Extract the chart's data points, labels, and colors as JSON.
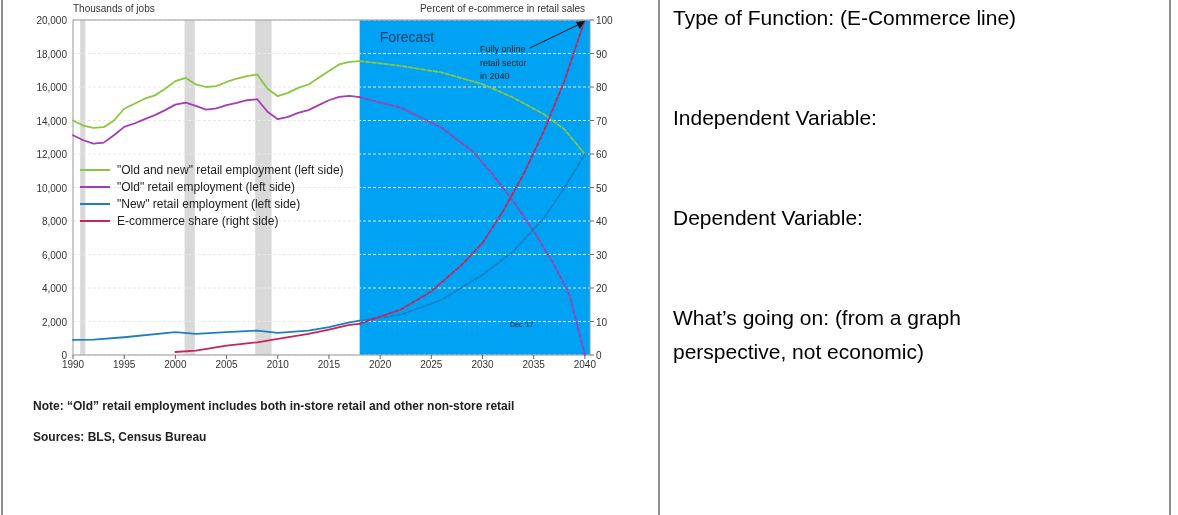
{
  "chart_data": [
    {
      "type": "line",
      "ylabel": "Thousands of jobs",
      "y2label": "Percent of e-commerce in retail sales",
      "xlim": [
        1990,
        2040.5
      ],
      "xticks": [
        1990,
        1995,
        2000,
        2005,
        2010,
        2015,
        2020,
        2025,
        2030,
        2035,
        2040
      ],
      "ylim": [
        0,
        20000
      ],
      "yticks": [
        {
          "value": 0,
          "label": "0"
        },
        {
          "value": 2000,
          "label": "2,000"
        },
        {
          "value": 4000,
          "label": "4,000"
        },
        {
          "value": 6000,
          "label": "6,000"
        },
        {
          "value": 8000,
          "label": "8,000"
        },
        {
          "value": 10000,
          "label": "10,000"
        },
        {
          "value": 12000,
          "label": "12,000"
        },
        {
          "value": 14000,
          "label": "14,000"
        },
        {
          "value": 16000,
          "label": "16,000"
        },
        {
          "value": 18000,
          "label": "18,000"
        },
        {
          "value": 20000,
          "label": "20,000"
        }
      ],
      "y2lim": [
        0,
        100
      ],
      "y2ticks": [
        0,
        10,
        20,
        30,
        40,
        50,
        60,
        70,
        80,
        90,
        100
      ],
      "grid": "y",
      "legend": "left",
      "line_style": "solid",
      "bands": [
        {
          "axis": "x",
          "from": 1990.7,
          "to": 1991.2,
          "color": "#d9d9d9"
        },
        {
          "axis": "x",
          "from": 2000.9,
          "to": 2001.9,
          "color": "#d9d9d9"
        },
        {
          "axis": "x",
          "from": 2007.8,
          "to": 2009.4,
          "color": "#d9d9d9"
        },
        {
          "axis": "x",
          "from": 2018,
          "to": 2040.5,
          "label": "Forecast",
          "color": "#00a3f3"
        }
      ],
      "series": [
        {
          "name": "\"Old and new\" retail employment (left side)",
          "color": "#8cc63e",
          "x": [
            1990,
            1991,
            1992,
            1993,
            1994,
            1995,
            1996,
            1997,
            1998,
            1999,
            2000,
            2001,
            2002,
            2003,
            2004,
            2005,
            2006,
            2007,
            2008,
            2009,
            2010,
            2011,
            2012,
            2013,
            2014,
            2015,
            2016,
            2017,
            2018
          ],
          "values": [
            14000,
            13700,
            13560,
            13600,
            14000,
            14700,
            15000,
            15300,
            15500,
            15900,
            16350,
            16550,
            16150,
            16000,
            16050,
            16300,
            16500,
            16650,
            16750,
            15900,
            15450,
            15650,
            15950,
            16150,
            16550,
            16950,
            17350,
            17500,
            17550
          ]
        },
        {
          "name": "\"Old\" retail employment (left side)",
          "color": "#a33db3",
          "x": [
            1990,
            1991,
            1992,
            1993,
            1994,
            1995,
            1996,
            1997,
            1998,
            1999,
            2000,
            2001,
            2002,
            2003,
            2004,
            2005,
            2006,
            2007,
            2008,
            2009,
            2010,
            2011,
            2012,
            2013,
            2014,
            2015,
            2016,
            2017,
            2018
          ],
          "values": [
            13120,
            12820,
            12620,
            12680,
            13120,
            13620,
            13820,
            14080,
            14320,
            14620,
            14950,
            15070,
            14870,
            14650,
            14720,
            14920,
            15050,
            15210,
            15270,
            14520,
            14080,
            14220,
            14460,
            14620,
            14920,
            15210,
            15410,
            15470,
            15390
          ]
        },
        {
          "name": "\"New\" retail employment (left side)",
          "color": "#1f7ec0",
          "x": [
            1990,
            1992,
            1995,
            2000,
            2002,
            2005,
            2008,
            2010,
            2013,
            2015,
            2017,
            2018
          ],
          "values": [
            900,
            920,
            1060,
            1360,
            1260,
            1360,
            1460,
            1320,
            1460,
            1660,
            1950,
            2050
          ]
        },
        {
          "name": "E-commerce share (right side)",
          "color": "#c8245a",
          "axis": "y2",
          "x": [
            2000,
            2002,
            2005,
            2008,
            2010,
            2013,
            2015,
            2017,
            2018
          ],
          "values": [
            0.9,
            1.3,
            2.8,
            3.8,
            4.8,
            6.3,
            7.6,
            9.0,
            9.3
          ]
        },
        {
          "color": "#8cc63e",
          "line_style": "dashed",
          "x": [
            2018,
            2022,
            2026,
            2030,
            2033,
            2036,
            2038,
            2040
          ],
          "values": [
            17550,
            17260,
            16870,
            16170,
            15370,
            14370,
            13470,
            12000
          ]
        },
        {
          "color": "#a33db3",
          "line_style": "dashed",
          "x": [
            2018,
            2022,
            2026,
            2029,
            2031,
            2033,
            2035,
            2037,
            2038.5,
            2040
          ],
          "values": [
            15390,
            14770,
            13570,
            12180,
            10780,
            9180,
            7390,
            5390,
            3590,
            0
          ]
        },
        {
          "color": "#1f7ec0",
          "line_style": "dashed",
          "x": [
            2018,
            2022,
            2026,
            2030,
            2033,
            2036,
            2038,
            2040
          ],
          "values": [
            2050,
            2400,
            3290,
            4790,
            6190,
            8180,
            9980,
            12000
          ]
        },
        {
          "color": "#c8245a",
          "line_style": "dashed",
          "axis": "y2",
          "x": [
            2018,
            2020,
            2022,
            2025,
            2028,
            2030,
            2032,
            2034,
            2036,
            2038,
            2040
          ],
          "values": [
            9.3,
            11.5,
            13.5,
            19,
            27,
            33.4,
            42.9,
            53.9,
            66.9,
            81.8,
            100
          ]
        }
      ],
      "annotations": [
        {
          "text": "Fully online retail sector in 2040",
          "x": 2040,
          "y": 20000
        },
        "Dec '17",
        "Note: “Old” retail employment includes both in-store retail and other non-store retail",
        "Sources: BLS, Census Bureau"
      ]
    },
    {
      "type": "other",
      "annotations": [
        "Type of Function: (E-Commerce line)",
        "Independent Variable:",
        "Dependent Variable:",
        "What’s going on: (from a graph perspective, not economic)"
      ]
    }
  ]
}
